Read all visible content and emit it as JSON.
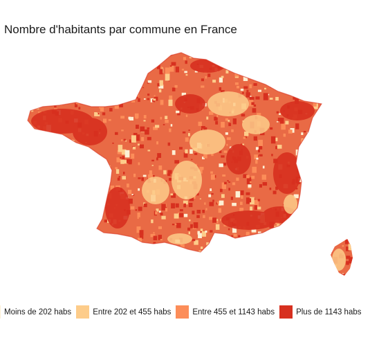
{
  "title": "Nombre d'habitants par commune en France",
  "legend": [
    {
      "label": "Moins de 202 habs",
      "color": "#fdf0d5"
    },
    {
      "label": "Entre 202 et 455 habs",
      "color": "#fdcc8a"
    },
    {
      "label": "Entre 455 et 1143 habs",
      "color": "#fc8d59"
    },
    {
      "label": "Plus de 1143 habs",
      "color": "#d7301f"
    }
  ],
  "map": {
    "regions": [
      "France métropolitaine",
      "Corse"
    ],
    "dominant_class_color": "#d7301f"
  }
}
